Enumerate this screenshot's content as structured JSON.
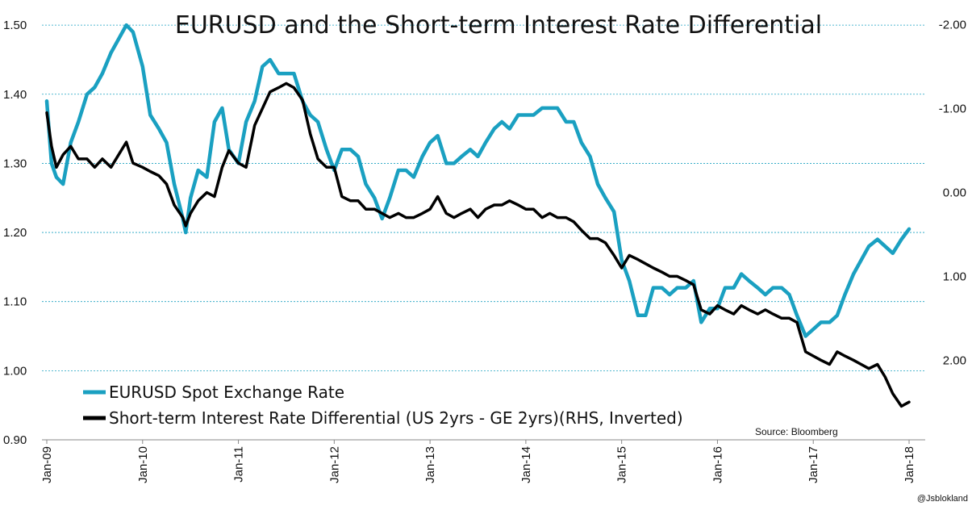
{
  "chart_data": {
    "type": "line",
    "title": "EURUSD and the Short-term Interest Rate Differential",
    "x_ticks": [
      "Jan-09",
      "Jan-10",
      "Jan-11",
      "Jan-12",
      "Jan-13",
      "Jan-14",
      "Jan-15",
      "Jan-16",
      "Jan-17",
      "Jan-18"
    ],
    "x_range": [
      2009.0,
      2018.0
    ],
    "y_left": {
      "range": [
        0.9,
        1.52
      ],
      "ticks": [
        "0.90",
        "1.00",
        "1.10",
        "1.20",
        "1.30",
        "1.40",
        "1.50"
      ],
      "tick_values": [
        0.9,
        1.0,
        1.1,
        1.2,
        1.3,
        1.4,
        1.5
      ]
    },
    "y_right": {
      "range": [
        -2.16,
        2.95
      ],
      "inverted": true,
      "ticks": [
        "-2.00",
        "-1.00",
        "0.00",
        "1.00",
        "2.00"
      ],
      "tick_values": [
        -2.0,
        -1.0,
        0.0,
        1.0,
        2.0
      ]
    },
    "grid": true,
    "series": [
      {
        "name": "EURUSD Spot Exchange Rate",
        "axis": "left",
        "color": "#1aa0c1",
        "x": [
          2009.0,
          2009.05,
          2009.1,
          2009.17,
          2009.25,
          2009.33,
          2009.42,
          2009.5,
          2009.58,
          2009.67,
          2009.75,
          2009.83,
          2009.9,
          2010.0,
          2010.08,
          2010.17,
          2010.25,
          2010.33,
          2010.42,
          2010.45,
          2010.5,
          2010.58,
          2010.67,
          2010.75,
          2010.83,
          2010.9,
          2011.0,
          2011.08,
          2011.17,
          2011.25,
          2011.33,
          2011.42,
          2011.5,
          2011.58,
          2011.67,
          2011.75,
          2011.83,
          2011.92,
          2012.0,
          2012.08,
          2012.17,
          2012.25,
          2012.33,
          2012.42,
          2012.5,
          2012.58,
          2012.67,
          2012.75,
          2012.83,
          2012.92,
          2013.0,
          2013.08,
          2013.17,
          2013.25,
          2013.33,
          2013.42,
          2013.5,
          2013.58,
          2013.67,
          2013.75,
          2013.83,
          2013.92,
          2014.0,
          2014.08,
          2014.17,
          2014.25,
          2014.33,
          2014.42,
          2014.5,
          2014.58,
          2014.67,
          2014.75,
          2014.83,
          2014.92,
          2015.0,
          2015.08,
          2015.17,
          2015.25,
          2015.33,
          2015.42,
          2015.5,
          2015.58,
          2015.67,
          2015.75,
          2015.83,
          2015.92,
          2016.0,
          2016.08,
          2016.17,
          2016.25,
          2016.33,
          2016.42,
          2016.5,
          2016.58,
          2016.67,
          2016.75,
          2016.83,
          2016.92,
          2017.0,
          2017.08,
          2017.17,
          2017.25,
          2017.33,
          2017.42,
          2017.5,
          2017.58,
          2017.67,
          2017.75,
          2017.83,
          2017.92,
          2018.0
        ],
        "values": [
          1.39,
          1.3,
          1.28,
          1.27,
          1.33,
          1.36,
          1.4,
          1.41,
          1.43,
          1.46,
          1.48,
          1.5,
          1.49,
          1.44,
          1.37,
          1.35,
          1.33,
          1.27,
          1.22,
          1.2,
          1.25,
          1.29,
          1.28,
          1.36,
          1.38,
          1.32,
          1.3,
          1.36,
          1.39,
          1.44,
          1.45,
          1.43,
          1.43,
          1.43,
          1.39,
          1.37,
          1.36,
          1.32,
          1.29,
          1.32,
          1.32,
          1.31,
          1.27,
          1.25,
          1.22,
          1.25,
          1.29,
          1.29,
          1.28,
          1.31,
          1.33,
          1.34,
          1.3,
          1.3,
          1.31,
          1.32,
          1.31,
          1.33,
          1.35,
          1.36,
          1.35,
          1.37,
          1.37,
          1.37,
          1.38,
          1.38,
          1.38,
          1.36,
          1.36,
          1.33,
          1.31,
          1.27,
          1.25,
          1.23,
          1.16,
          1.13,
          1.08,
          1.08,
          1.12,
          1.12,
          1.11,
          1.12,
          1.12,
          1.13,
          1.07,
          1.09,
          1.09,
          1.12,
          1.12,
          1.14,
          1.13,
          1.12,
          1.11,
          1.12,
          1.12,
          1.11,
          1.08,
          1.05,
          1.06,
          1.07,
          1.07,
          1.08,
          1.11,
          1.14,
          1.16,
          1.18,
          1.19,
          1.18,
          1.17,
          1.19,
          1.205
        ]
      },
      {
        "name": "Short-term Interest Rate Differential (US 2yrs - GE 2yrs)(RHS, Inverted)",
        "axis": "right",
        "color": "#000000",
        "x": [
          2009.0,
          2009.05,
          2009.1,
          2009.17,
          2009.25,
          2009.33,
          2009.42,
          2009.5,
          2009.58,
          2009.67,
          2009.75,
          2009.83,
          2009.9,
          2010.0,
          2010.08,
          2010.17,
          2010.25,
          2010.33,
          2010.42,
          2010.45,
          2010.5,
          2010.58,
          2010.67,
          2010.75,
          2010.83,
          2010.9,
          2011.0,
          2011.08,
          2011.17,
          2011.25,
          2011.33,
          2011.42,
          2011.5,
          2011.58,
          2011.67,
          2011.75,
          2011.83,
          2011.92,
          2012.0,
          2012.08,
          2012.17,
          2012.25,
          2012.33,
          2012.42,
          2012.5,
          2012.58,
          2012.67,
          2012.75,
          2012.83,
          2012.92,
          2013.0,
          2013.08,
          2013.17,
          2013.25,
          2013.33,
          2013.42,
          2013.5,
          2013.58,
          2013.67,
          2013.75,
          2013.83,
          2013.92,
          2014.0,
          2014.08,
          2014.17,
          2014.25,
          2014.33,
          2014.42,
          2014.5,
          2014.58,
          2014.67,
          2014.75,
          2014.83,
          2014.92,
          2015.0,
          2015.08,
          2015.17,
          2015.25,
          2015.33,
          2015.42,
          2015.5,
          2015.58,
          2015.67,
          2015.75,
          2015.83,
          2015.92,
          2016.0,
          2016.08,
          2016.17,
          2016.25,
          2016.33,
          2016.42,
          2016.5,
          2016.58,
          2016.67,
          2016.75,
          2016.83,
          2016.92,
          2017.0,
          2017.08,
          2017.17,
          2017.25,
          2017.33,
          2017.42,
          2017.5,
          2017.58,
          2017.67,
          2017.75,
          2017.83,
          2017.92,
          2018.0
        ],
        "values": [
          -0.95,
          -0.55,
          -0.3,
          -0.45,
          -0.55,
          -0.4,
          -0.4,
          -0.3,
          -0.4,
          -0.3,
          -0.45,
          -0.6,
          -0.35,
          -0.3,
          -0.25,
          -0.2,
          -0.1,
          0.15,
          0.3,
          0.4,
          0.25,
          0.1,
          0.0,
          0.05,
          -0.3,
          -0.5,
          -0.35,
          -0.3,
          -0.8,
          -1.0,
          -1.2,
          -1.25,
          -1.3,
          -1.25,
          -1.1,
          -0.7,
          -0.4,
          -0.3,
          -0.3,
          0.05,
          0.1,
          0.1,
          0.2,
          0.2,
          0.25,
          0.3,
          0.25,
          0.3,
          0.3,
          0.25,
          0.2,
          0.05,
          0.25,
          0.3,
          0.25,
          0.2,
          0.3,
          0.2,
          0.15,
          0.15,
          0.1,
          0.15,
          0.2,
          0.2,
          0.3,
          0.25,
          0.3,
          0.3,
          0.35,
          0.45,
          0.55,
          0.55,
          0.6,
          0.75,
          0.9,
          0.75,
          0.8,
          0.85,
          0.9,
          0.95,
          1.0,
          1.0,
          1.05,
          1.1,
          1.4,
          1.45,
          1.35,
          1.4,
          1.45,
          1.35,
          1.4,
          1.45,
          1.4,
          1.45,
          1.5,
          1.5,
          1.55,
          1.9,
          1.95,
          2.0,
          2.05,
          1.9,
          1.95,
          2.0,
          2.05,
          2.1,
          2.05,
          2.2,
          2.4,
          2.55,
          2.5
        ]
      }
    ],
    "annotations": {
      "source": "Source: Bloomberg",
      "credit": "@Jsblokland"
    },
    "legend_position": "bottom-left"
  }
}
